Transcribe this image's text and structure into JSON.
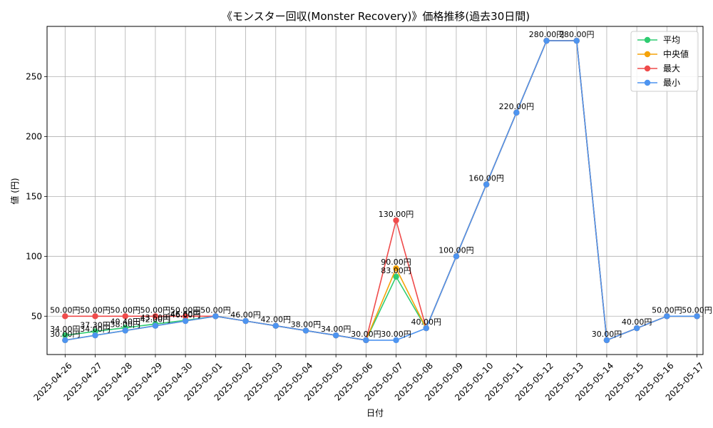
{
  "chart_data": {
    "type": "line",
    "title": "《モンスター回収(Monster Recovery)》価格推移(過去30日間)",
    "xlabel": "日付",
    "ylabel": "値 (円)",
    "ylim": [
      18,
      292
    ],
    "yticks": [
      50,
      100,
      150,
      200,
      250
    ],
    "grid": true,
    "legend_position": "top-right",
    "categories": [
      "2025-04-26",
      "2025-04-27",
      "2025-04-28",
      "2025-04-29",
      "2025-04-30",
      "2025-05-01",
      "2025-05-02",
      "2025-05-03",
      "2025-05-04",
      "2025-05-05",
      "2025-05-06",
      "2025-05-07",
      "2025-05-08",
      "2025-05-09",
      "2025-05-10",
      "2025-05-11",
      "2025-05-12",
      "2025-05-13",
      "2025-05-14",
      "2025-05-15",
      "2025-05-16",
      "2025-05-17"
    ],
    "series": [
      {
        "name": "平均",
        "color": "#2ecc71",
        "values": [
          34,
          37.3,
          40.4,
          43.5,
          46.6,
          50,
          46,
          42,
          38,
          34,
          30,
          83,
          40,
          100,
          160,
          220,
          280,
          280,
          30,
          40,
          50,
          50
        ]
      },
      {
        "name": "中央値",
        "color": "#f5a30a",
        "values": [
          30,
          34,
          38,
          42,
          46,
          50,
          46,
          42,
          38,
          34,
          30,
          90,
          40,
          100,
          160,
          220,
          280,
          280,
          30,
          40,
          50,
          50
        ]
      },
      {
        "name": "最大",
        "color": "#ef4b4b",
        "values": [
          50,
          50,
          50,
          50,
          50,
          50,
          46,
          42,
          38,
          34,
          30,
          130,
          40,
          100,
          160,
          220,
          280,
          280,
          30,
          40,
          50,
          50
        ]
      },
      {
        "name": "最小",
        "color": "#4d94f0",
        "values": [
          30,
          34,
          38,
          42,
          46,
          50,
          46,
          42,
          38,
          34,
          30,
          30,
          40,
          100,
          160,
          220,
          280,
          280,
          30,
          40,
          50,
          50
        ]
      }
    ],
    "labels": [
      {
        "series": 2,
        "index": 0,
        "text": "50.00円"
      },
      {
        "series": 2,
        "index": 1,
        "text": "50.00円"
      },
      {
        "series": 2,
        "index": 2,
        "text": "50.00円"
      },
      {
        "series": 2,
        "index": 3,
        "text": "50.00円"
      },
      {
        "series": 2,
        "index": 4,
        "text": "50.00円"
      },
      {
        "series": 0,
        "index": 0,
        "text": "34.00円"
      },
      {
        "series": 0,
        "index": 1,
        "text": "37.30円"
      },
      {
        "series": 0,
        "index": 2,
        "text": "40.40円"
      },
      {
        "series": 0,
        "index": 3,
        "text": "43.50円"
      },
      {
        "series": 0,
        "index": 4,
        "text": "46.60円"
      },
      {
        "series": 3,
        "index": 0,
        "text": "30.00円"
      },
      {
        "series": 3,
        "index": 1,
        "text": "34.00円"
      },
      {
        "series": 3,
        "index": 2,
        "text": "38.00円"
      },
      {
        "series": 3,
        "index": 3,
        "text": "42.00円"
      },
      {
        "series": 3,
        "index": 4,
        "text": "46.00円"
      },
      {
        "series": 3,
        "index": 5,
        "text": "50.00円"
      },
      {
        "series": 3,
        "index": 6,
        "text": "46.00円"
      },
      {
        "series": 3,
        "index": 7,
        "text": "42.00円"
      },
      {
        "series": 3,
        "index": 8,
        "text": "38.00円"
      },
      {
        "series": 3,
        "index": 9,
        "text": "34.00円"
      },
      {
        "series": 3,
        "index": 10,
        "text": "30.00円"
      },
      {
        "series": 2,
        "index": 11,
        "text": "130.00円"
      },
      {
        "series": 1,
        "index": 11,
        "text": "90.00円"
      },
      {
        "series": 0,
        "index": 11,
        "text": "83.00円"
      },
      {
        "series": 3,
        "index": 11,
        "text": "30.00円"
      },
      {
        "series": 3,
        "index": 12,
        "text": "40.00円"
      },
      {
        "series": 3,
        "index": 13,
        "text": "100.00円"
      },
      {
        "series": 3,
        "index": 14,
        "text": "160.00円"
      },
      {
        "series": 3,
        "index": 15,
        "text": "220.00円"
      },
      {
        "series": 3,
        "index": 16,
        "text": "280.00円"
      },
      {
        "series": 3,
        "index": 17,
        "text": "280.00円"
      },
      {
        "series": 3,
        "index": 18,
        "text": "30.00円"
      },
      {
        "series": 3,
        "index": 19,
        "text": "40.00円"
      },
      {
        "series": 3,
        "index": 20,
        "text": "50.00円"
      },
      {
        "series": 3,
        "index": 21,
        "text": "50.00円"
      }
    ]
  }
}
